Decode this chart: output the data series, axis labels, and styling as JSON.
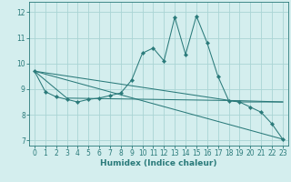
{
  "xlabel": "Humidex (Indice chaleur)",
  "xlim": [
    -0.5,
    23.5
  ],
  "ylim": [
    6.8,
    12.4
  ],
  "yticks": [
    7,
    8,
    9,
    10,
    11,
    12
  ],
  "xticks": [
    0,
    1,
    2,
    3,
    4,
    5,
    6,
    7,
    8,
    9,
    10,
    11,
    12,
    13,
    14,
    15,
    16,
    17,
    18,
    19,
    20,
    21,
    22,
    23
  ],
  "bg_color": "#d4eeee",
  "grid_color": "#aad4d4",
  "line_color": "#2a7a7a",
  "series_main": {
    "x": [
      0,
      1,
      2,
      3,
      4,
      5,
      6,
      7,
      8,
      9,
      10,
      11,
      12,
      13,
      14,
      15,
      16,
      17,
      18,
      19,
      20,
      21,
      22,
      23
    ],
    "y": [
      9.7,
      8.9,
      8.7,
      8.6,
      8.5,
      8.6,
      8.65,
      8.75,
      8.85,
      9.35,
      10.4,
      10.6,
      10.1,
      11.8,
      10.35,
      11.85,
      10.8,
      9.5,
      8.55,
      8.5,
      8.3,
      8.1,
      7.65,
      7.05
    ]
  },
  "series_extra": [
    {
      "x": [
        0,
        23
      ],
      "y": [
        9.7,
        7.05
      ]
    },
    {
      "x": [
        0,
        19,
        23
      ],
      "y": [
        9.7,
        8.5,
        8.5
      ]
    },
    {
      "x": [
        0,
        3,
        19,
        23
      ],
      "y": [
        9.7,
        8.65,
        8.55,
        8.5
      ]
    }
  ]
}
